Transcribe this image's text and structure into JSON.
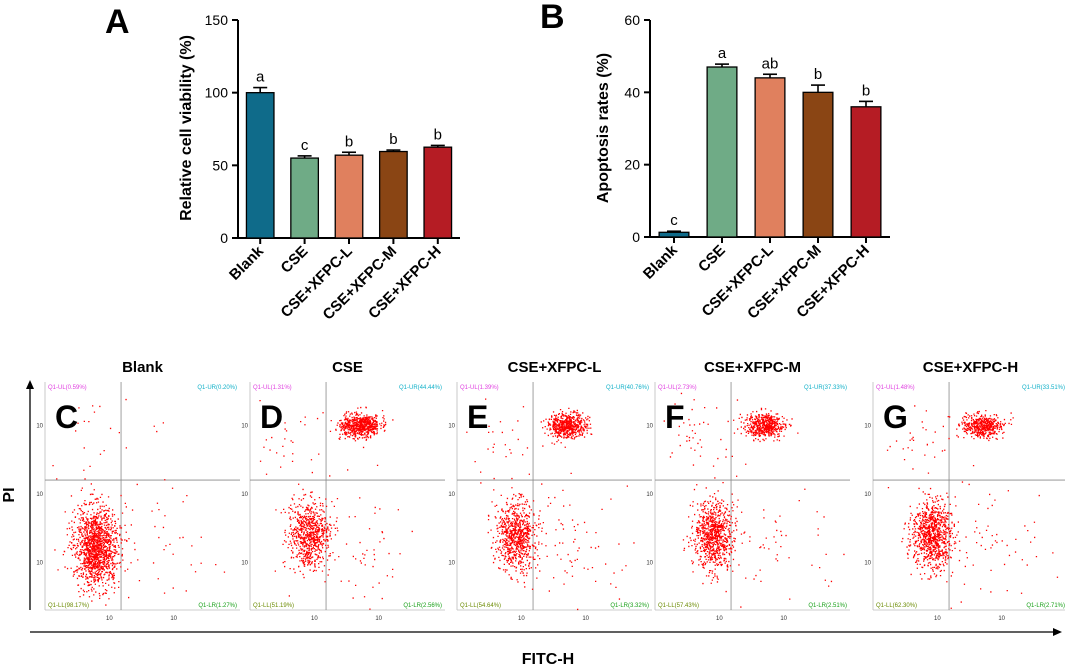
{
  "colors": {
    "blank": "#0f6b8a",
    "cse": "#6fab86",
    "xfpc_l": "#e0805e",
    "xfpc_m": "#8a4514",
    "xfpc_h": "#b51c24",
    "dots": "#ff0000",
    "quad_ul": "#e040e0",
    "quad_ur": "#10b0c8",
    "quad_ll": "#6a8a00",
    "quad_lr": "#18a018"
  },
  "chart_data": [
    {
      "id": "A",
      "type": "bar",
      "title": "",
      "panel_label": "A",
      "categories": [
        "Blank",
        "CSE",
        "CSE+XFPC-L",
        "CSE+XFPC-M",
        "CSE+XFPC-H"
      ],
      "values": [
        100,
        55,
        57,
        59.5,
        62.5
      ],
      "errors": [
        3.5,
        1.5,
        2,
        1,
        1.2
      ],
      "significance": [
        "a",
        "c",
        "b",
        "b",
        "b"
      ],
      "ylabel": "Relative cell viability (%)",
      "xlabel": "",
      "ylim": [
        0,
        150
      ],
      "yticks": [
        "0",
        "50",
        "100",
        "150"
      ]
    },
    {
      "id": "B",
      "type": "bar",
      "title": "",
      "panel_label": "B",
      "categories": [
        "Blank",
        "CSE",
        "CSE+XFPC-L",
        "CSE+XFPC-M",
        "CSE+XFPC-H"
      ],
      "values": [
        1.3,
        47,
        44,
        40,
        36
      ],
      "errors": [
        0.3,
        0.8,
        1,
        2,
        1.5
      ],
      "significance": [
        "c",
        "a",
        "ab",
        "b",
        "b"
      ],
      "ylabel": "Apoptosis rates (%)",
      "xlabel": "",
      "ylim": [
        0,
        60
      ],
      "yticks": [
        "0",
        "20",
        "40",
        "60"
      ]
    },
    {
      "id": "flow",
      "type": "scatter",
      "title": "",
      "xlabel": "FITC-H",
      "ylabel": "PI",
      "panels": [
        {
          "letter": "C",
          "title": "Blank",
          "q_ul": "Q1-UL(0.59%)",
          "q_ur": "Q1-UR(0.20%)",
          "q_ll": "Q1-LL(98.17%)",
          "q_lr": "Q1-LR(1.27%)"
        },
        {
          "letter": "D",
          "title": "CSE",
          "q_ul": "Q1-UL(1.31%)",
          "q_ur": "Q1-UR(44.44%)",
          "q_ll": "Q1-LL(51.19%)",
          "q_lr": "Q1-LR(2.56%)"
        },
        {
          "letter": "E",
          "title": "CSE+XFPC-L",
          "q_ul": "Q1-UL(1.39%)",
          "q_ur": "Q1-UR(40.76%)",
          "q_ll": "Q1-LL(54.64%)",
          "q_lr": "Q1-LR(3.32%)"
        },
        {
          "letter": "F",
          "title": "CSE+XFPC-M",
          "q_ul": "Q1-UL(2.73%)",
          "q_ur": "Q1-UR(37.33%)",
          "q_ll": "Q1-LL(57.43%)",
          "q_lr": "Q1-LR(2.51%)"
        },
        {
          "letter": "G",
          "title": "CSE+XFPC-H",
          "q_ul": "Q1-UL(1.48%)",
          "q_ur": "Q1-UR(33.51%)",
          "q_ll": "Q1-LL(62.30%)",
          "q_lr": "Q1-LR(2.71%)"
        }
      ]
    }
  ]
}
